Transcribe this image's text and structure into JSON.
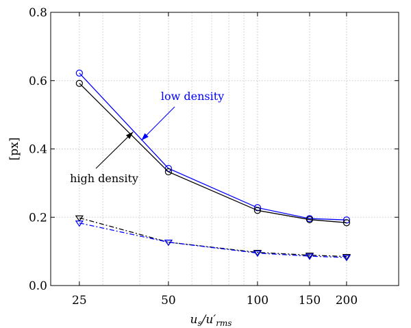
{
  "chart_data": {
    "type": "line",
    "xscale": "log",
    "xlim": [
      20,
      300
    ],
    "ylim": [
      0,
      0.8
    ],
    "xticks": [
      25,
      50,
      100,
      150,
      200
    ],
    "xtick_labels": [
      "25",
      "50",
      "100",
      "150",
      "200"
    ],
    "yticks": [
      0,
      0.2,
      0.4,
      0.6,
      0.8
    ],
    "ytick_labels": [
      "0.0",
      "0.2",
      "0.4",
      "0.6",
      "0.8"
    ],
    "xlabel": "u_s/u'_rms",
    "ylabel": "[px]",
    "grid": true,
    "x": [
      25,
      50,
      100,
      150,
      200
    ],
    "series": [
      {
        "name": "low density",
        "color": "#0000ff",
        "marker": "circle",
        "linestyle": "solid",
        "values": [
          0.622,
          0.343,
          0.228,
          0.196,
          0.192
        ]
      },
      {
        "name": "high density",
        "color": "#000000",
        "marker": "circle",
        "linestyle": "solid",
        "values": [
          0.592,
          0.333,
          0.22,
          0.193,
          0.184
        ]
      },
      {
        "color": "#000000",
        "marker": "triangle-down",
        "linestyle": "dashdot",
        "values": [
          0.198,
          0.127,
          0.097,
          0.089,
          0.085
        ]
      },
      {
        "color": "#0000ff",
        "marker": "triangle-down",
        "linestyle": "dashdot",
        "values": [
          0.183,
          0.127,
          0.095,
          0.086,
          0.082
        ]
      }
    ],
    "annotations": [
      {
        "text": "low density",
        "color": "#0000ff",
        "arrow_to": [
          40.5,
          0.425
        ]
      },
      {
        "text": "high density",
        "color": "#000000",
        "arrow_to": [
          38,
          0.45
        ]
      }
    ]
  }
}
